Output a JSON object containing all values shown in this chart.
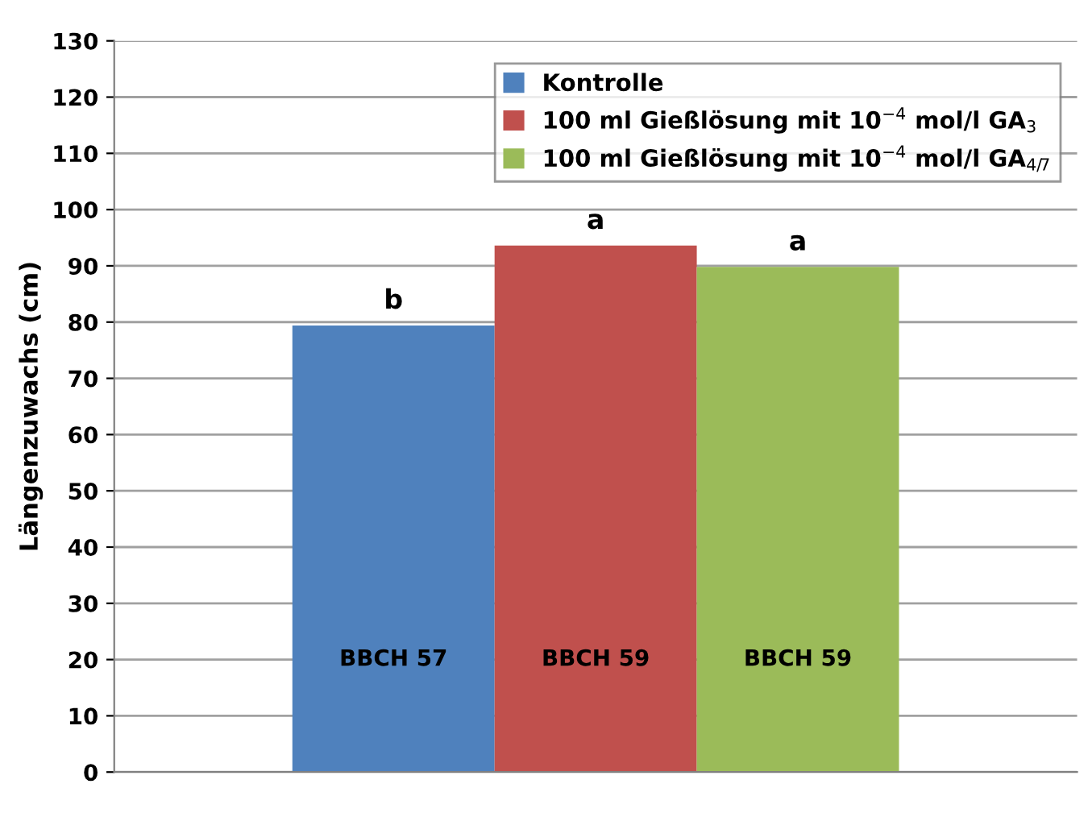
{
  "chart_data": {
    "type": "bar",
    "ylabel": "Längenzuwachs (cm)",
    "categories": [
      null
    ],
    "series": [
      {
        "name": "Kontrolle",
        "color": "#4f81bd",
        "values": [
          79.4
        ]
      },
      {
        "name": "100 ml Gießlösung mit 10$^{−4}$ mol/l GA$_{3}$",
        "color": "#c0504d",
        "values": [
          93.6
        ]
      },
      {
        "name": "100 ml Gießlösung mit 10$^{−4}$ mol/l GA$_{4/7}$",
        "color": "#9bbb59",
        "values": [
          89.8
        ]
      }
    ],
    "annotations": [
      "b",
      "a",
      "a",
      "BBCH 57",
      "BBCH 59",
      "BBCH 59"
    ],
    "ylim": [
      0,
      130
    ],
    "yticks": [
      0,
      10,
      20,
      30,
      40,
      50,
      60,
      70,
      80,
      90,
      100,
      110,
      120,
      130
    ],
    "grid": "y",
    "legend": "top right",
    "tick_labels": "y"
  }
}
